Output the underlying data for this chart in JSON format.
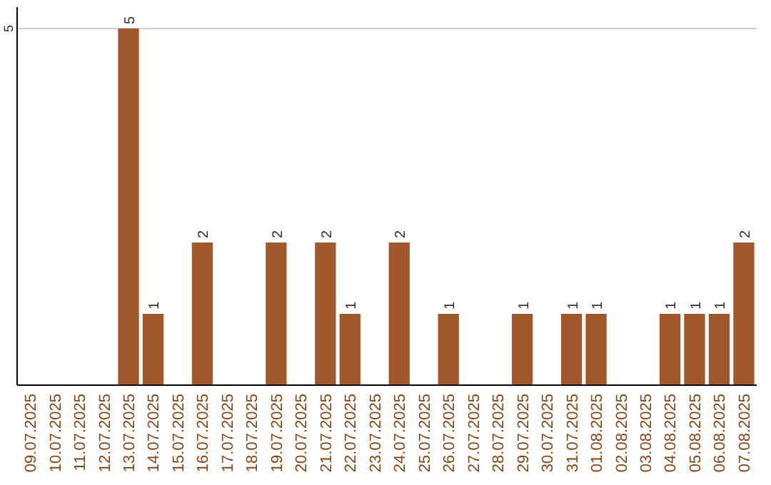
{
  "chart_data": {
    "type": "bar",
    "categories": [
      "09.07.2025",
      "10.07.2025",
      "11.07.2025",
      "12.07.2025",
      "13.07.2025",
      "14.07.2025",
      "15.07.2025",
      "16.07.2025",
      "17.07.2025",
      "18.07.2025",
      "19.07.2025",
      "20.07.2025",
      "21.07.2025",
      "22.07.2025",
      "23.07.2025",
      "24.07.2025",
      "25.07.2025",
      "26.07.2025",
      "27.07.2025",
      "28.07.2025",
      "29.07.2025",
      "30.07.2025",
      "31.07.2025",
      "01.08.2025",
      "02.08.2025",
      "03.08.2025",
      "04.08.2025",
      "05.08.2025",
      "06.08.2025",
      "07.08.2025"
    ],
    "values": [
      0,
      0,
      0,
      0,
      5,
      1,
      0,
      2,
      0,
      0,
      2,
      0,
      2,
      1,
      0,
      2,
      0,
      1,
      0,
      0,
      1,
      0,
      1,
      1,
      0,
      0,
      1,
      1,
      1,
      2
    ],
    "value_labels": [
      null,
      null,
      null,
      null,
      "5",
      "1",
      null,
      "2",
      null,
      null,
      "2",
      null,
      "2",
      "1",
      null,
      "2",
      null,
      "1",
      null,
      null,
      "1",
      null,
      "1",
      "1",
      null,
      null,
      "1",
      "1",
      "1",
      "2"
    ],
    "color": "#a0582c",
    "ylim": [
      0,
      5.3
    ],
    "yticks": [
      5
    ],
    "grid": "y"
  }
}
